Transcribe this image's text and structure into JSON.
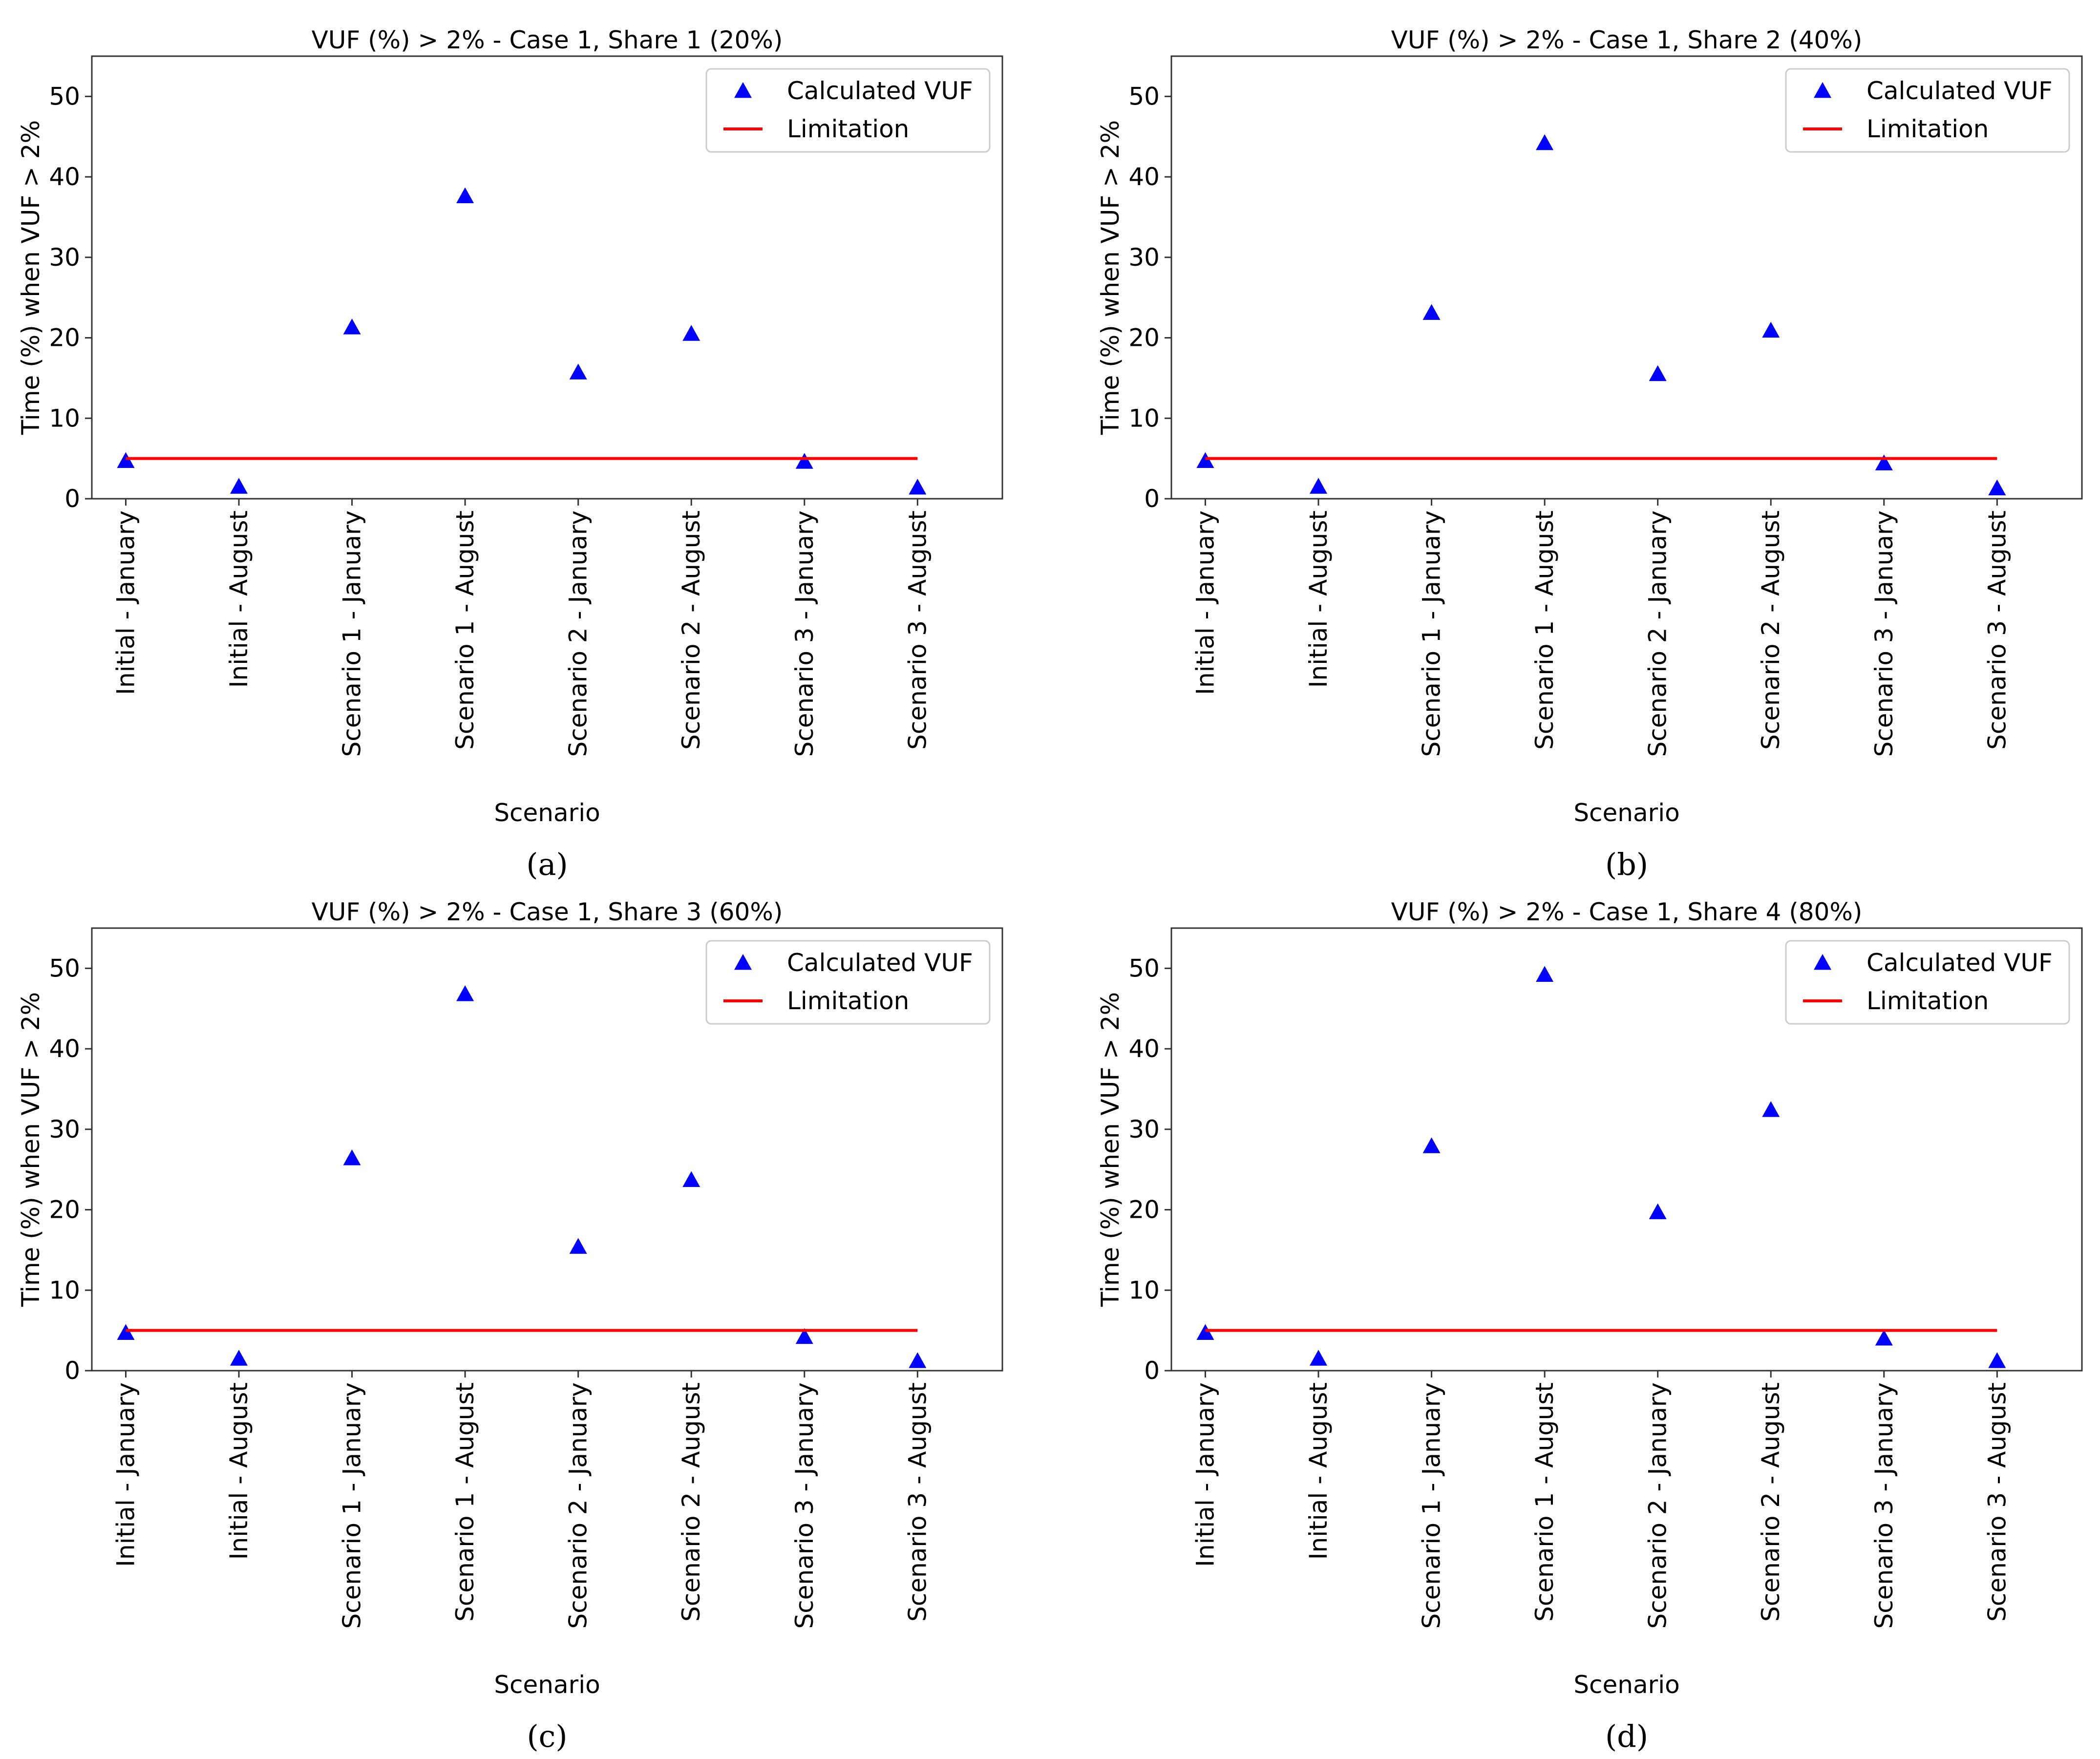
{
  "chart_data": [
    {
      "type": "scatter",
      "panel_label": "(a)",
      "title": "VUF (%) > 2% - Case 1, Share 1 (20%)",
      "xlabel": "Scenario",
      "ylabel": "Time (%) when VUF > 2%",
      "ylim": [
        0,
        55
      ],
      "yticks": [
        "0",
        "10",
        "20",
        "30",
        "40",
        "50"
      ],
      "categories": [
        "Initial - January",
        "Initial - August",
        "Scenario 1 - January",
        "Scenario 1 - August",
        "Scenario 2 - January",
        "Scenario 2 - August",
        "Scenario 3 - January",
        "Scenario 3 - August"
      ],
      "series": [
        {
          "name": "Calculated VUF",
          "marker": "triangle",
          "color": "#0000ff",
          "values": [
            4.7,
            1.5,
            21.3,
            37.6,
            15.7,
            20.5,
            4.6,
            1.4
          ]
        },
        {
          "name": "Limitation",
          "marker": "line",
          "color": "#ff0000",
          "values": [
            5,
            5,
            5,
            5,
            5,
            5,
            5,
            5
          ]
        }
      ],
      "legend_position": "top-right",
      "grid": false
    },
    {
      "type": "scatter",
      "panel_label": "(b)",
      "title": "VUF (%) > 2% - Case 1, Share 2 (40%)",
      "xlabel": "Scenario",
      "ylabel": "Time (%) when VUF > 2%",
      "ylim": [
        0,
        55
      ],
      "yticks": [
        "0",
        "10",
        "20",
        "30",
        "40",
        "50"
      ],
      "categories": [
        "Initial - January",
        "Initial - August",
        "Scenario 1 - January",
        "Scenario 1 - August",
        "Scenario 2 - January",
        "Scenario 2 - August",
        "Scenario 3 - January",
        "Scenario 3 - August"
      ],
      "series": [
        {
          "name": "Calculated VUF",
          "marker": "triangle",
          "color": "#0000ff",
          "values": [
            4.7,
            1.5,
            23.1,
            44.2,
            15.5,
            20.9,
            4.4,
            1.3
          ]
        },
        {
          "name": "Limitation",
          "marker": "line",
          "color": "#ff0000",
          "values": [
            5,
            5,
            5,
            5,
            5,
            5,
            5,
            5
          ]
        }
      ],
      "legend_position": "top-right",
      "grid": false
    },
    {
      "type": "scatter",
      "panel_label": "(c)",
      "title": "VUF (%) > 2% - Case 1, Share 3 (60%)",
      "xlabel": "Scenario",
      "ylabel": "Time (%) when VUF > 2%",
      "ylim": [
        0,
        55
      ],
      "yticks": [
        "0",
        "10",
        "20",
        "30",
        "40",
        "50"
      ],
      "categories": [
        "Initial - January",
        "Initial - August",
        "Scenario 1 - January",
        "Scenario 1 - August",
        "Scenario 2 - January",
        "Scenario 2 - August",
        "Scenario 3 - January",
        "Scenario 3 - August"
      ],
      "series": [
        {
          "name": "Calculated VUF",
          "marker": "triangle",
          "color": "#0000ff",
          "values": [
            4.7,
            1.5,
            26.4,
            46.8,
            15.4,
            23.7,
            4.2,
            1.2
          ]
        },
        {
          "name": "Limitation",
          "marker": "line",
          "color": "#ff0000",
          "values": [
            5,
            5,
            5,
            5,
            5,
            5,
            5,
            5
          ]
        }
      ],
      "legend_position": "top-right",
      "grid": false
    },
    {
      "type": "scatter",
      "panel_label": "(d)",
      "title": "VUF (%) > 2% - Case 1, Share 4 (80%)",
      "xlabel": "Scenario",
      "ylabel": "Time (%) when VUF > 2%",
      "ylim": [
        0,
        55
      ],
      "yticks": [
        "0",
        "10",
        "20",
        "30",
        "40",
        "50"
      ],
      "categories": [
        "Initial - January",
        "Initial - August",
        "Scenario 1 - January",
        "Scenario 1 - August",
        "Scenario 2 - January",
        "Scenario 2 - August",
        "Scenario 3 - January",
        "Scenario 3 - August"
      ],
      "series": [
        {
          "name": "Calculated VUF",
          "marker": "triangle",
          "color": "#0000ff",
          "values": [
            4.7,
            1.5,
            27.9,
            49.2,
            19.7,
            32.4,
            4.0,
            1.2
          ]
        },
        {
          "name": "Limitation",
          "marker": "line",
          "color": "#ff0000",
          "values": [
            5,
            5,
            5,
            5,
            5,
            5,
            5,
            5
          ]
        }
      ],
      "legend_position": "top-right",
      "grid": false
    }
  ]
}
